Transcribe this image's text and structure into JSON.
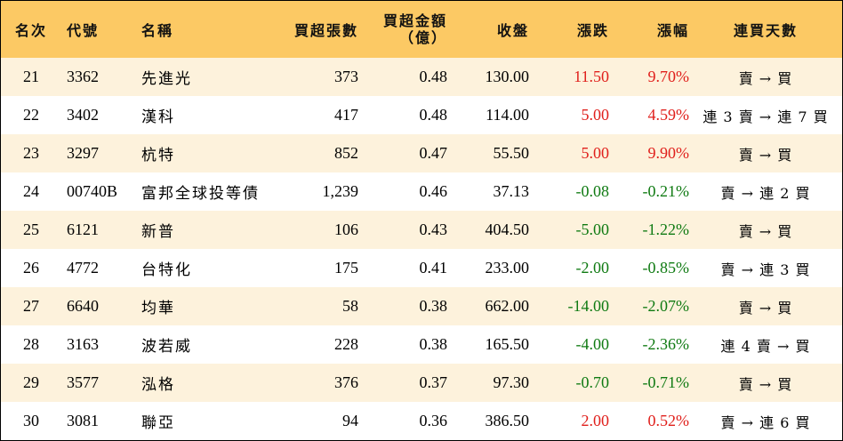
{
  "headers": {
    "rank": "名次",
    "code": "代號",
    "name": "名稱",
    "lots": "買超張數",
    "amount_line1": "買超金額",
    "amount_line2": "（億）",
    "close": "收盤",
    "change": "漲跌",
    "pct": "漲幅",
    "days": "連買天數"
  },
  "colors": {
    "header_bg": "#fcc964",
    "odd_row_bg": "#fdf2dc",
    "up": "#e0201c",
    "down": "#0f7a12"
  },
  "rows": [
    {
      "rank": "21",
      "code": "3362",
      "name": "先進光",
      "lots": "373",
      "amount": "0.48",
      "close": "130.00",
      "change": "11.50",
      "pct": "9.70%",
      "days": "賣 → 買",
      "dir": "up"
    },
    {
      "rank": "22",
      "code": "3402",
      "name": "漢科",
      "lots": "417",
      "amount": "0.48",
      "close": "114.00",
      "change": "5.00",
      "pct": "4.59%",
      "days": "連 3 賣 → 連 7 買",
      "dir": "up"
    },
    {
      "rank": "23",
      "code": "3297",
      "name": "杭特",
      "lots": "852",
      "amount": "0.47",
      "close": "55.50",
      "change": "5.00",
      "pct": "9.90%",
      "days": "賣 → 買",
      "dir": "up"
    },
    {
      "rank": "24",
      "code": "00740B",
      "name": "富邦全球投等債",
      "lots": "1,239",
      "amount": "0.46",
      "close": "37.13",
      "change": "-0.08",
      "pct": "-0.21%",
      "days": "賣 → 連 2 買",
      "dir": "down"
    },
    {
      "rank": "25",
      "code": "6121",
      "name": "新普",
      "lots": "106",
      "amount": "0.43",
      "close": "404.50",
      "change": "-5.00",
      "pct": "-1.22%",
      "days": "賣 → 買",
      "dir": "down"
    },
    {
      "rank": "26",
      "code": "4772",
      "name": "台特化",
      "lots": "175",
      "amount": "0.41",
      "close": "233.00",
      "change": "-2.00",
      "pct": "-0.85%",
      "days": "賣 → 連 3 買",
      "dir": "down"
    },
    {
      "rank": "27",
      "code": "6640",
      "name": "均華",
      "lots": "58",
      "amount": "0.38",
      "close": "662.00",
      "change": "-14.00",
      "pct": "-2.07%",
      "days": "賣 → 買",
      "dir": "down"
    },
    {
      "rank": "28",
      "code": "3163",
      "name": "波若威",
      "lots": "228",
      "amount": "0.38",
      "close": "165.50",
      "change": "-4.00",
      "pct": "-2.36%",
      "days": "連 4 賣 → 買",
      "dir": "down"
    },
    {
      "rank": "29",
      "code": "3577",
      "name": "泓格",
      "lots": "376",
      "amount": "0.37",
      "close": "97.30",
      "change": "-0.70",
      "pct": "-0.71%",
      "days": "賣 → 買",
      "dir": "down"
    },
    {
      "rank": "30",
      "code": "3081",
      "name": "聯亞",
      "lots": "94",
      "amount": "0.36",
      "close": "386.50",
      "change": "2.00",
      "pct": "0.52%",
      "days": "賣 → 連 6 買",
      "dir": "up"
    }
  ]
}
